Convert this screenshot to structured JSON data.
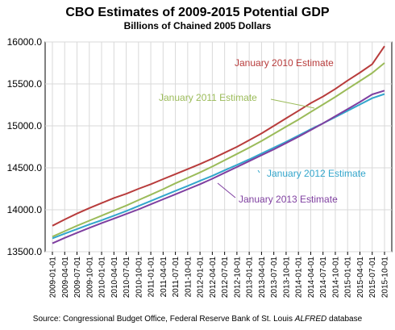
{
  "chart_data": {
    "type": "line",
    "title": "CBO Estimates of 2009-2015 Potential GDP",
    "subtitle": "Billions of Chained 2005 Dollars",
    "ylim": [
      13500,
      16000
    ],
    "yticks": [
      "13500.0",
      "14000.0",
      "14500.0",
      "15000.0",
      "15500.0",
      "16000.0"
    ],
    "grid": true,
    "x": [
      "2009-01-01",
      "2009-04-01",
      "2009-07-01",
      "2009-10-01",
      "2010-01-01",
      "2010-04-01",
      "2010-07-01",
      "2010-10-01",
      "2011-01-01",
      "2011-04-01",
      "2011-07-01",
      "2011-10-01",
      "2012-01-01",
      "2012-04-01",
      "2012-07-01",
      "2012-10-01",
      "2013-01-01",
      "2013-04-01",
      "2013-07-01",
      "2013-10-01",
      "2014-01-01",
      "2014-04-01",
      "2014-07-01",
      "2014-10-01",
      "2015-01-01",
      "2015-04-01",
      "2015-07-01",
      "2015-10-01"
    ],
    "series": [
      {
        "name": "January 2010 Estimate",
        "color": "#b83c3c",
        "values": [
          13810,
          13885,
          13955,
          14020,
          14080,
          14140,
          14190,
          14250,
          14305,
          14365,
          14425,
          14485,
          14545,
          14610,
          14680,
          14750,
          14830,
          14910,
          15000,
          15090,
          15180,
          15270,
          15350,
          15440,
          15540,
          15635,
          15735,
          15950
        ]
      },
      {
        "name": "January 2011 Estimate",
        "color": "#9bbb59",
        "values": [
          13680,
          13745,
          13810,
          13870,
          13930,
          13990,
          14050,
          14115,
          14180,
          14245,
          14315,
          14380,
          14445,
          14515,
          14590,
          14665,
          14740,
          14820,
          14905,
          14990,
          15075,
          15165,
          15255,
          15345,
          15440,
          15535,
          15630,
          15750
        ]
      },
      {
        "name": "January 2012 Estimate",
        "color": "#33a6cc",
        "values": [
          13660,
          13715,
          13770,
          13825,
          13875,
          13930,
          13985,
          14045,
          14105,
          14165,
          14225,
          14285,
          14345,
          14405,
          14470,
          14535,
          14600,
          14670,
          14740,
          14810,
          14885,
          14960,
          15030,
          15105,
          15180,
          15255,
          15330,
          15380
        ]
      },
      {
        "name": "January 2013 Estimate",
        "color": "#7f3fa0",
        "values": [
          13600,
          13665,
          13725,
          13785,
          13840,
          13895,
          13950,
          14005,
          14065,
          14125,
          14185,
          14245,
          14305,
          14370,
          14440,
          14510,
          14580,
          14650,
          14720,
          14795,
          14870,
          14950,
          15030,
          15115,
          15200,
          15285,
          15375,
          15420
        ]
      }
    ],
    "annotations": [
      "January 2010 Estimate",
      "January 2011 Estimate",
      "January 2012 Estimate",
      "January 2013 Estimate"
    ]
  },
  "source": {
    "prefix": "Source: Congressional Budget Office, Federal Reserve Bank of St. Louis ",
    "italic": "ALFRED",
    "suffix": " database"
  }
}
